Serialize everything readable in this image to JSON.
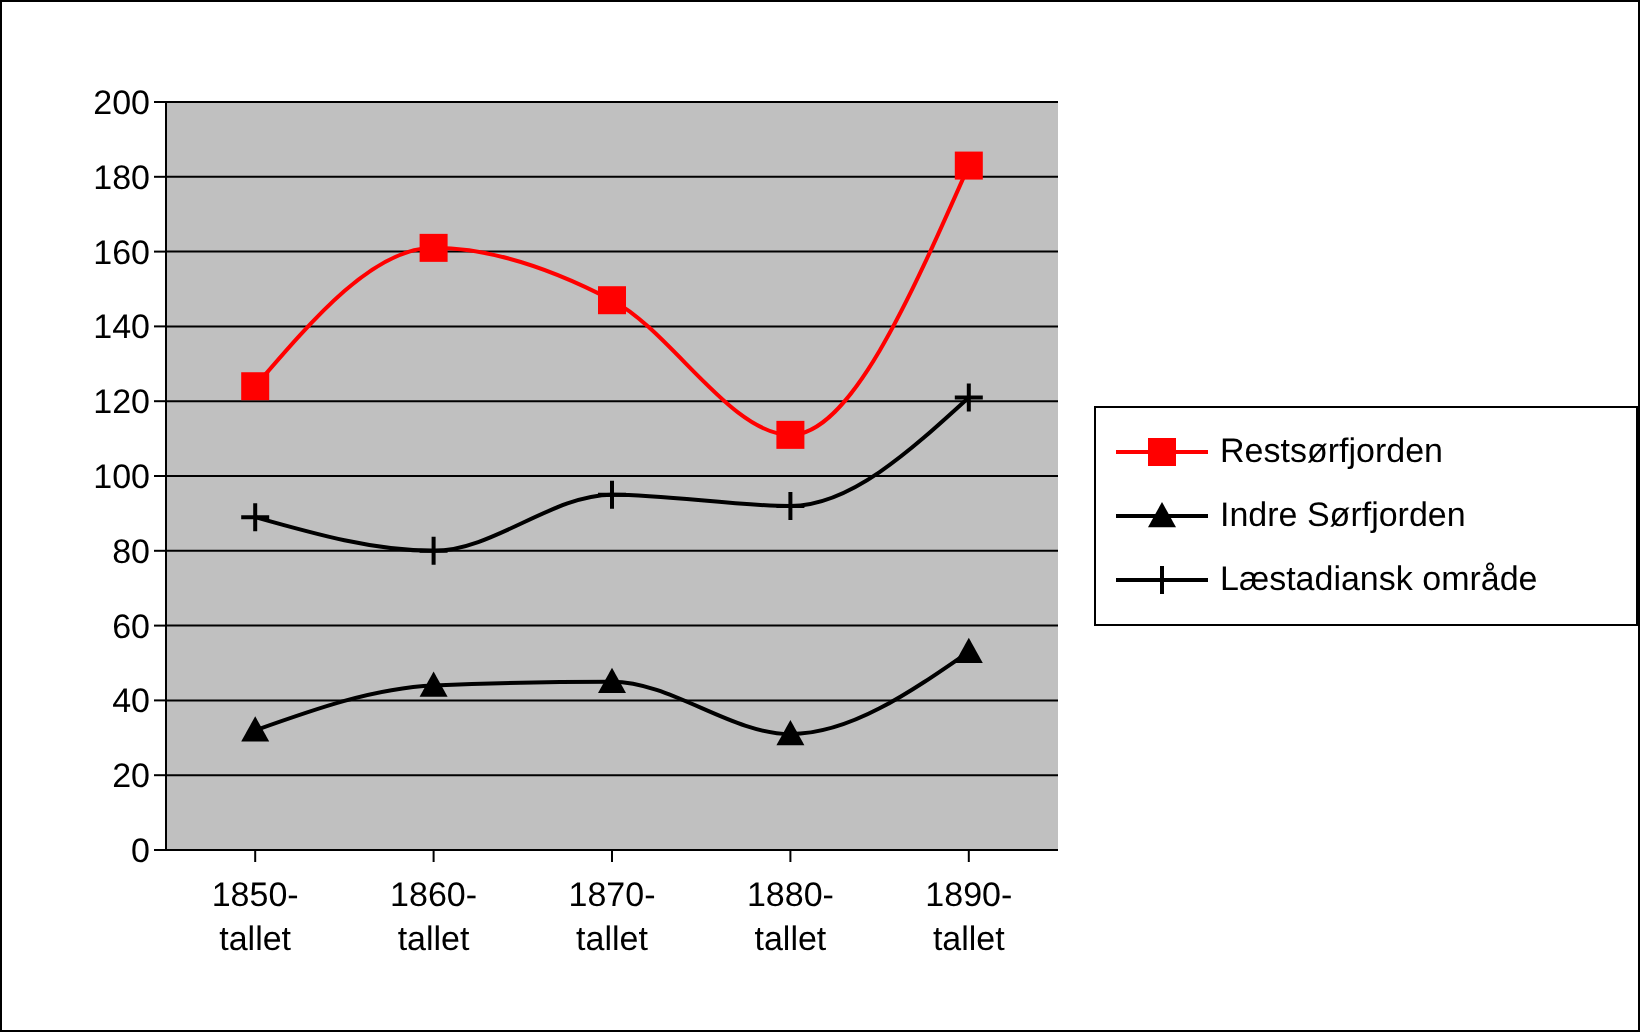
{
  "chart_data": {
    "type": "line",
    "categories": [
      "1850-tallet",
      "1860-tallet",
      "1870-tallet",
      "1880-tallet",
      "1890-tallet"
    ],
    "series": [
      {
        "name": "Restsørfjorden",
        "color": "#ff0000",
        "marker": "square",
        "values": [
          124,
          161,
          147,
          111,
          183
        ]
      },
      {
        "name": "Indre Sørfjorden",
        "color": "#000000",
        "marker": "triangle",
        "values": [
          32,
          44,
          45,
          31,
          53
        ]
      },
      {
        "name": "Læstadiansk område",
        "color": "#000000",
        "marker": "cross",
        "values": [
          89,
          80,
          95,
          92,
          121
        ]
      }
    ],
    "ylim": [
      0,
      200
    ],
    "yticks": [
      0,
      20,
      40,
      60,
      80,
      100,
      120,
      140,
      160,
      180,
      200
    ],
    "grid": "y",
    "legend": "right"
  }
}
